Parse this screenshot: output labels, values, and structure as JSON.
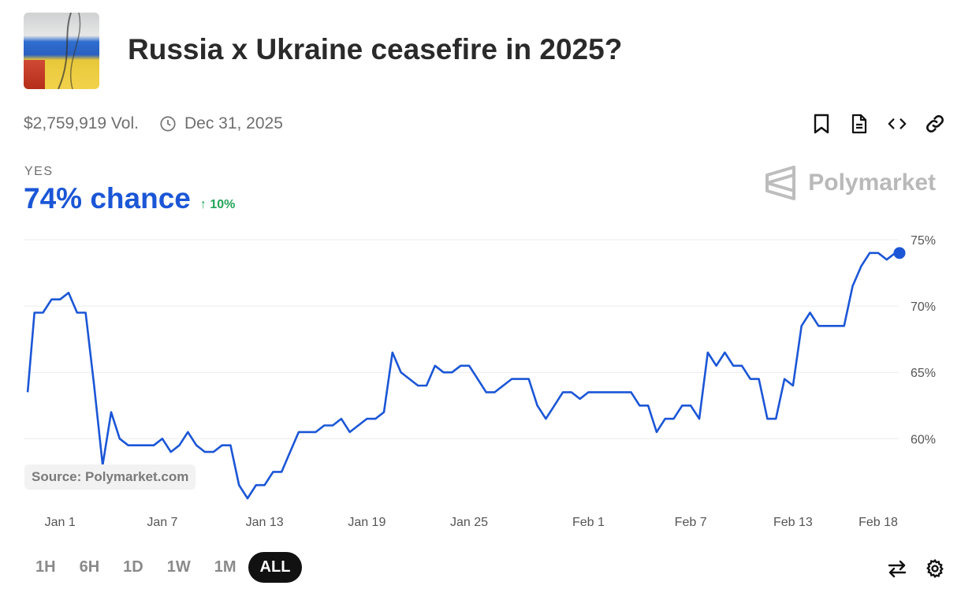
{
  "header": {
    "title": "Russia x Ukraine ceasefire in 2025?",
    "volume": "$2,759,919 Vol.",
    "end_date": "Dec 31, 2025"
  },
  "outcome": {
    "label": "YES",
    "chance": "74% chance",
    "delta": "10%"
  },
  "brand": {
    "name": "Polymarket"
  },
  "source_label": "Source: Polymarket.com",
  "actions": {
    "icons": [
      "bookmark-icon",
      "document-icon",
      "embed-code-icon",
      "link-icon"
    ]
  },
  "bottom_actions": {
    "icons": [
      "swap-arrows-icon",
      "settings-gear-icon"
    ]
  },
  "ranges": [
    "1H",
    "6H",
    "1D",
    "1W",
    "1M",
    "ALL"
  ],
  "active_range": "ALL",
  "colors": {
    "line": "#1b56d6",
    "up": "#23a35a",
    "grid": "#ececec"
  },
  "chart_data": {
    "type": "line",
    "title": "",
    "xlabel": "",
    "ylabel": "",
    "y_ticks": [
      "75%",
      "70%",
      "65%",
      "60%"
    ],
    "y_tick_values": [
      75,
      70,
      65,
      60
    ],
    "ylim": [
      55.5,
      75.0
    ],
    "x_tick_labels": [
      "Jan 1",
      "Jan 7",
      "Jan 13",
      "Jan 19",
      "Jan 25",
      "Feb 1",
      "Feb 7",
      "Feb 13",
      "Feb 18"
    ],
    "x_tick_days": [
      1,
      7,
      13,
      19,
      25,
      32,
      38,
      44,
      49
    ],
    "xlim_days": [
      -0.95,
      50.25
    ],
    "grid": true,
    "series": [
      {
        "name": "",
        "x_days": [
          -0.9,
          -0.5,
          0,
          0.5,
          1,
          1.5,
          2,
          2.5,
          3,
          3.5,
          4,
          4.5,
          5,
          5.5,
          6,
          6.5,
          7,
          7.5,
          8,
          8.5,
          9,
          9.5,
          10,
          10.5,
          11,
          11.5,
          12,
          12.5,
          13,
          13.5,
          14,
          14.5,
          15,
          15.5,
          16,
          16.5,
          17,
          17.5,
          18,
          18.5,
          19,
          19.5,
          20,
          20.5,
          21,
          21.5,
          22,
          22.5,
          23,
          23.5,
          24,
          24.5,
          25,
          25.5,
          26,
          26.5,
          27,
          27.5,
          28,
          28.5,
          29,
          29.5,
          30,
          30.5,
          31,
          31.5,
          32,
          32.5,
          33,
          33.5,
          34,
          34.5,
          35,
          35.5,
          36,
          36.5,
          37,
          37.5,
          38,
          38.5,
          39,
          39.5,
          40,
          40.5,
          41,
          41.5,
          42,
          42.5,
          43,
          43.5,
          44,
          44.5,
          45,
          45.5,
          46,
          46.5,
          47,
          47.5,
          48,
          48.5,
          49,
          49.5,
          50,
          50.25
        ],
        "values": [
          63.5,
          69.5,
          69.5,
          70.5,
          70.5,
          71,
          69.5,
          69.5,
          64,
          58,
          62,
          60,
          59.5,
          59.5,
          59.5,
          59.5,
          60,
          59,
          59.5,
          60.5,
          59.5,
          59,
          59,
          59.5,
          59.5,
          56.5,
          55.5,
          56.5,
          56.5,
          57.5,
          57.5,
          59,
          60.5,
          60.5,
          60.5,
          61,
          61,
          61.5,
          60.5,
          61,
          61.5,
          61.5,
          62,
          66.5,
          65,
          64.5,
          64,
          64,
          65.5,
          65,
          65,
          65.5,
          65.5,
          64.5,
          63.5,
          63.5,
          64,
          64.5,
          64.5,
          64.5,
          62.5,
          61.5,
          62.5,
          63.5,
          63.5,
          63,
          63.5,
          63.5,
          63.5,
          63.5,
          63.5,
          63.5,
          62.5,
          62.5,
          60.5,
          61.5,
          61.5,
          62.5,
          62.5,
          61.5,
          66.5,
          65.5,
          66.5,
          65.5,
          65.5,
          64.5,
          64.5,
          61.5,
          61.5,
          64.5,
          64,
          68.5,
          69.5,
          68.5,
          68.5,
          68.5,
          68.5,
          71.5,
          73,
          74,
          74,
          73.5,
          74,
          74
        ]
      }
    ]
  }
}
